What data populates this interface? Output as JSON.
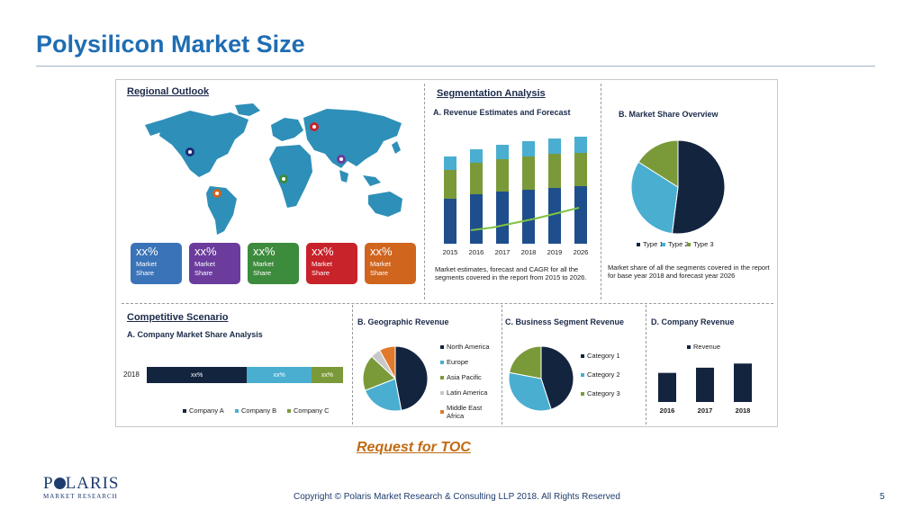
{
  "slide": {
    "title": "Polysilicon Market Size",
    "toc_link": "Request for TOC",
    "copyright": "Copyright © Polaris Market Research & Consulting LLP 2018. All Rights Reserved",
    "page_number": "5",
    "logo": {
      "main_pre": "P",
      "main_post": "LARIS",
      "sub": "MARKET RESEARCH"
    }
  },
  "regional": {
    "heading": "Regional Outlook",
    "cards": [
      {
        "pct": "xx%",
        "label1": "Market",
        "label2": "Share",
        "color": "#3a73b8"
      },
      {
        "pct": "xx%",
        "label1": "Market",
        "label2": "Share",
        "color": "#6b3c9c"
      },
      {
        "pct": "xx%",
        "label1": "Market",
        "label2": "Share",
        "color": "#3d8b3d"
      },
      {
        "pct": "xx%",
        "label1": "Market",
        "label2": "Share",
        "color": "#c8222a"
      },
      {
        "pct": "xx%",
        "label1": "Market",
        "label2": "Share",
        "color": "#d0651e"
      }
    ],
    "map_color": "#2e8fb8"
  },
  "segmentation": {
    "heading": "Segmentation Analysis",
    "revenue_title": "A. Revenue Estimates and Forecast",
    "revenue_note": "Market estimates, forecast and CAGR for all the segments covered in the report from 2015 to 2026.",
    "share_title": "B. Market Share Overview",
    "share_note": "Market share of all the segments covered in the report for base year 2018 and forecast year 2026",
    "share_legend": [
      {
        "name": "Type 1",
        "color": "#13243f"
      },
      {
        "name": "Type 2",
        "color": "#4aaed0"
      },
      {
        "name": "Type 3",
        "color": "#7a9a3a"
      }
    ]
  },
  "competitive": {
    "heading": "Competitive Scenario",
    "sub": "A. Company Market Share Analysis",
    "year": "2018",
    "segments": [
      {
        "label": "xx%",
        "color": "#13243f"
      },
      {
        "label": "xx%",
        "color": "#4aaed0"
      },
      {
        "label": "xx%",
        "color": "#7a9a3a"
      }
    ],
    "legend": [
      {
        "name": "Company A",
        "color": "#13243f"
      },
      {
        "name": "Company B",
        "color": "#4aaed0"
      },
      {
        "name": "Company C",
        "color": "#7a9a3a"
      }
    ]
  },
  "geographic": {
    "title": "B. Geographic Revenue",
    "legend": [
      {
        "name": "North America",
        "color": "#13243f"
      },
      {
        "name": "Europe",
        "color": "#4aaed0"
      },
      {
        "name": "Asia Pacific",
        "color": "#7a9a3a"
      },
      {
        "name": "Latin America",
        "color": "#c8c8c8"
      },
      {
        "name": "Middle East",
        "name2": "Africa",
        "color": "#e07a2a"
      }
    ]
  },
  "business": {
    "title": "C. Business Segment Revenue",
    "legend": [
      {
        "name": "Category 1",
        "color": "#13243f"
      },
      {
        "name": "Category 2",
        "color": "#4aaed0"
      },
      {
        "name": "Category 3",
        "color": "#7a9a3a"
      }
    ]
  },
  "company_rev": {
    "title": "D. Company Revenue",
    "legend": "Revenue",
    "color": "#13243f"
  },
  "chart_data": [
    {
      "type": "bar",
      "title": "A. Revenue Estimates and Forecast",
      "categories": [
        "2015",
        "2016",
        "2017",
        "2018",
        "2019",
        "2026"
      ],
      "series": [
        {
          "values": [
            50,
            55,
            58,
            60,
            62,
            64
          ],
          "color": "#1f4e8c"
        },
        {
          "values": [
            32,
            35,
            36,
            37,
            38,
            37
          ],
          "color": "#7a9a3a"
        },
        {
          "values": [
            15,
            15,
            16,
            17,
            17,
            18
          ],
          "color": "#4aaed0"
        }
      ],
      "trend": [
        5,
        8,
        13,
        18,
        24,
        30
      ],
      "ylim": [
        0,
        130
      ]
    },
    {
      "type": "pie",
      "title": "B. Market Share Overview",
      "labels": [
        "Type 1",
        "Type 2",
        "Type 3"
      ],
      "values": [
        52,
        32,
        16
      ]
    },
    {
      "type": "bar",
      "title": "A. Company Market Share Analysis",
      "categories": [
        "2018"
      ],
      "series": [
        {
          "name": "Company A",
          "values": [
            51
          ]
        },
        {
          "name": "Company B",
          "values": [
            33
          ]
        },
        {
          "name": "Company C",
          "values": [
            16
          ]
        }
      ]
    },
    {
      "type": "pie",
      "title": "B. Geographic Revenue",
      "labels": [
        "North America",
        "Europe",
        "Asia Pacific",
        "Latin America",
        "Middle East Africa"
      ],
      "values": [
        47,
        22,
        18,
        5,
        8
      ]
    },
    {
      "type": "pie",
      "title": "C. Business Segment Revenue",
      "labels": [
        "Category 1",
        "Category 2",
        "Category 3"
      ],
      "values": [
        45,
        33,
        22
      ]
    },
    {
      "type": "bar",
      "title": "D. Company Revenue",
      "categories": [
        "2016",
        "2017",
        "2018"
      ],
      "series": [
        {
          "name": "Revenue",
          "values": [
            28,
            33,
            37
          ]
        }
      ],
      "ylim": [
        0,
        45
      ]
    }
  ]
}
